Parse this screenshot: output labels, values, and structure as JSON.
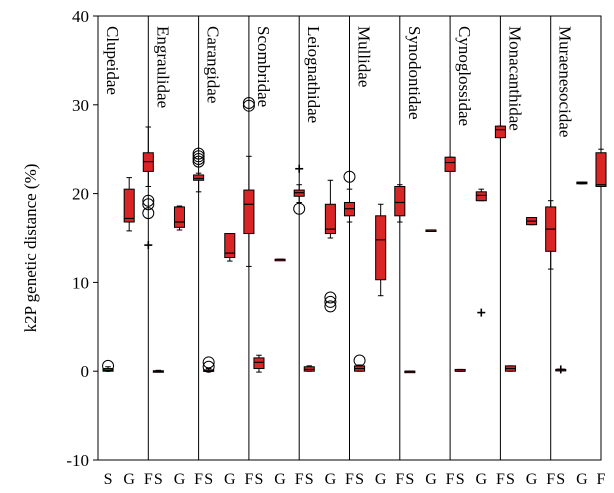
{
  "chart_data": {
    "type": "box",
    "title": "",
    "xlabel": "",
    "ylabel": "k2P genetic distance (%)",
    "ylim": [
      -10,
      40
    ],
    "yticks": [
      -10,
      0,
      10,
      20,
      30,
      40
    ],
    "groups": [
      "S",
      "G",
      "F"
    ],
    "colors": {
      "box": "#d92525",
      "edge": "#000000"
    },
    "families": [
      {
        "name": "Clupeidae",
        "boxes": [
          {
            "group": "S",
            "min": 0,
            "q1": 0,
            "median": 0.1,
            "q3": 0.3,
            "max": 0.5,
            "outliers": [],
            "extremes": [
              0.6
            ]
          },
          {
            "group": "G",
            "min": 15.8,
            "q1": 16.8,
            "median": 17.2,
            "q3": 20.5,
            "max": 21.8,
            "outliers": [],
            "extremes": []
          },
          {
            "group": "F",
            "min": 20.8,
            "q1": 22.5,
            "median": 23.6,
            "q3": 24.6,
            "max": 27.5,
            "outliers": [
              14.2
            ],
            "extremes": [
              19.2,
              18.8,
              17.8
            ]
          }
        ]
      },
      {
        "name": "Engraulidae",
        "boxes": [
          {
            "group": "S",
            "min": -0.1,
            "q1": -0.05,
            "median": 0,
            "q3": 0.05,
            "max": 0.1,
            "outliers": [],
            "extremes": []
          },
          {
            "group": "G",
            "min": 15.9,
            "q1": 16.2,
            "median": 16.8,
            "q3": 18.5,
            "max": 18.6,
            "outliers": [],
            "extremes": []
          },
          {
            "group": "F",
            "min": 20.2,
            "q1": 21.5,
            "median": 21.7,
            "q3": 22.1,
            "max": 22.3,
            "outliers": [],
            "extremes": [
              24.5,
              24.2,
              23.9,
              23.6
            ]
          }
        ]
      },
      {
        "name": "Carangidae",
        "boxes": [
          {
            "group": "S",
            "min": 0,
            "q1": 0,
            "median": 0,
            "q3": 0.15,
            "max": 0.3,
            "outliers": [],
            "extremes": [
              1.0,
              0.5
            ]
          },
          {
            "group": "G",
            "min": 12.4,
            "q1": 12.8,
            "median": 13.3,
            "q3": 15.5,
            "max": 15.5,
            "outliers": [],
            "extremes": []
          },
          {
            "group": "F",
            "min": 11.8,
            "q1": 15.5,
            "median": 18.8,
            "q3": 20.4,
            "max": 24.2,
            "outliers": [],
            "extremes": [
              30.2,
              29.9
            ]
          }
        ]
      },
      {
        "name": "Scombridae",
        "boxes": [
          {
            "group": "S",
            "min": -0.1,
            "q1": 0.3,
            "median": 1.0,
            "q3": 1.5,
            "max": 1.8,
            "outliers": [],
            "extremes": []
          },
          {
            "group": "G",
            "min": 12.6,
            "q1": 12.6,
            "median": 12.6,
            "q3": 12.6,
            "max": 12.6,
            "outliers": [],
            "extremes": []
          },
          {
            "group": "F",
            "min": 19.0,
            "q1": 19.7,
            "median": 20.1,
            "q3": 20.4,
            "max": 21.0,
            "outliers": [
              22.8
            ],
            "extremes": [
              18.3
            ]
          }
        ]
      },
      {
        "name": "Leiognathidae",
        "boxes": [
          {
            "group": "S",
            "min": 0,
            "q1": 0,
            "median": 0.2,
            "q3": 0.5,
            "max": 0.6,
            "outliers": [],
            "extremes": []
          },
          {
            "group": "G",
            "min": 15.0,
            "q1": 15.5,
            "median": 16.0,
            "q3": 18.8,
            "max": 21.5,
            "outliers": [],
            "extremes": [
              8.3,
              7.8,
              7.3
            ]
          },
          {
            "group": "F",
            "min": 16.8,
            "q1": 17.5,
            "median": 18.3,
            "q3": 19.0,
            "max": 20.5,
            "outliers": [],
            "extremes": [
              21.9
            ]
          }
        ]
      },
      {
        "name": "Mullidae",
        "boxes": [
          {
            "group": "S",
            "min": 0,
            "q1": 0,
            "median": 0.3,
            "q3": 0.6,
            "max": 0.7,
            "outliers": [],
            "extremes": [
              1.2
            ]
          },
          {
            "group": "G",
            "min": 8.5,
            "q1": 10.3,
            "median": 14.8,
            "q3": 17.5,
            "max": 18.8,
            "outliers": [],
            "extremes": []
          },
          {
            "group": "F",
            "min": 16.8,
            "q1": 17.5,
            "median": 19.0,
            "q3": 20.8,
            "max": 21.0,
            "outliers": [],
            "extremes": []
          }
        ]
      },
      {
        "name": "Synodontidae",
        "boxes": [
          {
            "group": "S",
            "min": 0,
            "q1": 0,
            "median": 0,
            "q3": 0,
            "max": 0,
            "outliers": [],
            "extremes": []
          },
          {
            "group": "G",
            "min": 15.9,
            "q1": 15.9,
            "median": 15.9,
            "q3": 15.9,
            "max": 15.9,
            "outliers": [],
            "extremes": []
          },
          {
            "group": "F",
            "min": 22.5,
            "q1": 22.5,
            "median": 23.5,
            "q3": 24.1,
            "max": 24.1,
            "outliers": [],
            "extremes": []
          }
        ]
      },
      {
        "name": "Cynoglossidae",
        "boxes": [
          {
            "group": "S",
            "min": 0,
            "q1": 0,
            "median": 0,
            "q3": 0.2,
            "max": 0.2,
            "outliers": [],
            "extremes": []
          },
          {
            "group": "G",
            "min": 19.2,
            "q1": 19.2,
            "median": 19.8,
            "q3": 20.2,
            "max": 20.5,
            "outliers": [
              6.6
            ],
            "extremes": []
          },
          {
            "group": "F",
            "min": 26.3,
            "q1": 26.3,
            "median": 27.2,
            "q3": 27.6,
            "max": 27.6,
            "outliers": [],
            "extremes": []
          }
        ]
      },
      {
        "name": "Monacanthidae",
        "boxes": [
          {
            "group": "S",
            "min": 0,
            "q1": 0,
            "median": 0.3,
            "q3": 0.6,
            "max": 0.6,
            "outliers": [],
            "extremes": []
          },
          {
            "group": "G",
            "min": 16.5,
            "q1": 16.5,
            "median": 16.9,
            "q3": 17.3,
            "max": 17.3,
            "outliers": [],
            "extremes": []
          },
          {
            "group": "F",
            "min": 11.5,
            "q1": 13.5,
            "median": 16.0,
            "q3": 18.5,
            "max": 19.2,
            "outliers": [],
            "extremes": []
          }
        ]
      },
      {
        "name": "Muraenesocidae",
        "boxes": [
          {
            "group": "S",
            "min": 0.2,
            "q1": 0.2,
            "median": 0.2,
            "q3": 0.2,
            "max": 0.2,
            "outliers": [
              0.2
            ],
            "extremes": []
          },
          {
            "group": "G",
            "min": 21.1,
            "q1": 21.1,
            "median": 21.2,
            "q3": 21.3,
            "max": 21.3,
            "outliers": [],
            "extremes": []
          },
          {
            "group": "F",
            "min": 20.8,
            "q1": 20.8,
            "median": 21.0,
            "q3": 24.6,
            "max": 25.0,
            "outliers": [],
            "extremes": []
          }
        ]
      }
    ]
  }
}
